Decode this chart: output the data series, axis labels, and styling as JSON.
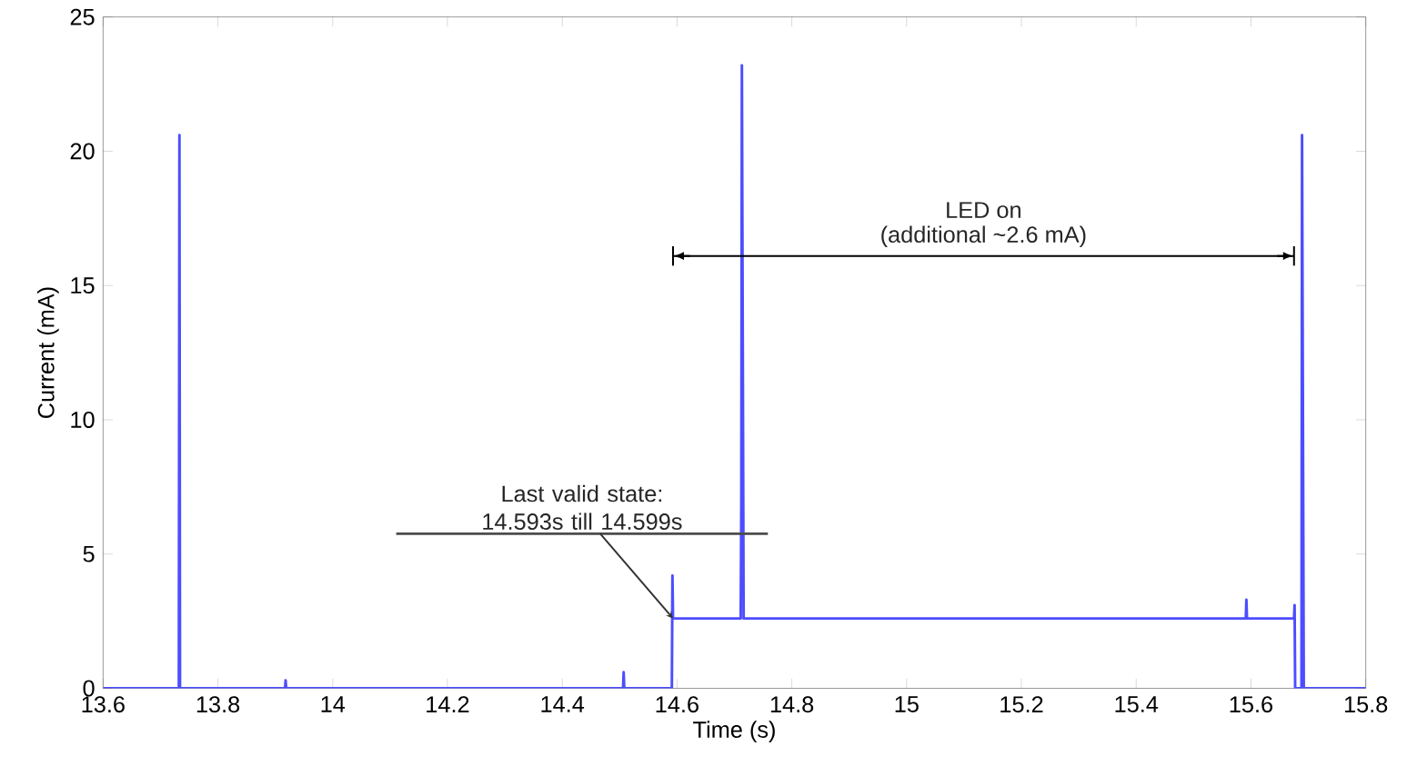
{
  "chart_data": {
    "type": "line",
    "xlabel": "Time (s)",
    "ylabel": "Current (mA)",
    "x": [
      13.6,
      13.732,
      13.733,
      13.734,
      13.917,
      13.918,
      13.919,
      14.506,
      14.507,
      14.508,
      14.591,
      14.592,
      14.593,
      14.711,
      14.712,
      14.713,
      14.716,
      15.591,
      15.592,
      15.593,
      15.675,
      15.676,
      15.677,
      15.688,
      15.689,
      15.692,
      15.8
    ],
    "series": [
      {
        "color": "#4d4dff",
        "values": [
          0,
          0,
          20.6,
          0,
          0,
          0.3,
          0,
          0,
          0.6,
          0,
          0,
          4.2,
          2.6,
          2.6,
          6.9,
          23.2,
          2.6,
          2.6,
          3.3,
          2.6,
          2.6,
          3.1,
          0,
          0,
          20.6,
          0,
          0
        ]
      },
      {
        "color": "#000000",
        "x": [
          14.593,
          15.675
        ],
        "values": [
          16.1,
          16.1
        ]
      }
    ],
    "xlim": [
      13.6,
      15.8
    ],
    "xticks": [
      13.6,
      13.8,
      14,
      14.2,
      14.4,
      14.6,
      14.8,
      15,
      15.2,
      15.4,
      15.6,
      15.8
    ],
    "ylim": [
      0,
      25
    ],
    "yticks": [
      0,
      5,
      10,
      15,
      20,
      25
    ],
    "grid": false,
    "marker": "none",
    "line_style": "solid",
    "annotations": [
      "LED on",
      "(additional ~2.6 mA)",
      {
        "text": "Last valid state: 14.593s till 14.599s",
        "x": 14.593,
        "y": 2.6
      }
    ]
  }
}
